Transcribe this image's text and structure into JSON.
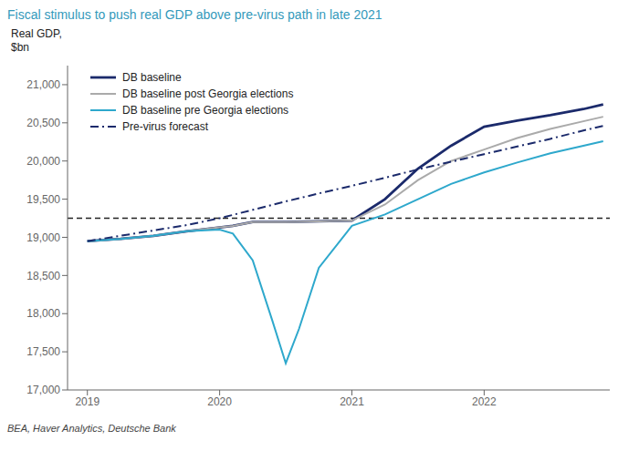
{
  "chart_data": {
    "type": "line",
    "title": "Fiscal stimulus to push real GDP above pre-virus path in late 2021",
    "ylabel": "Real GDP,\n$bn",
    "source": "BEA, Haver Analytics, Deutsche Bank",
    "title_color": "#3399bb",
    "xlim": [
      2018.85,
      2022.95
    ],
    "xticks": [
      2019,
      2020,
      2021,
      2022
    ],
    "ylim": [
      17000,
      21250
    ],
    "yticks": [
      {
        "value": 17000,
        "label": "17,000"
      },
      {
        "value": 17500,
        "label": "17,500"
      },
      {
        "value": 18000,
        "label": "18,000"
      },
      {
        "value": 18500,
        "label": "18,500"
      },
      {
        "value": 19000,
        "label": "19,000"
      },
      {
        "value": 19500,
        "label": "19,500"
      },
      {
        "value": 20000,
        "label": "20,000"
      },
      {
        "value": 20500,
        "label": "20,500"
      },
      {
        "value": 21000,
        "label": "21,000"
      }
    ],
    "grid": false,
    "legend": "upper left",
    "series": [
      {
        "name": "DB baseline",
        "color": "#1b2a6b",
        "line_style": "solid",
        "x": [
          2019.0,
          2019.25,
          2019.5,
          2019.75,
          2020.0,
          2020.1,
          2020.25,
          2020.5,
          2020.75,
          2021.0,
          2021.25,
          2021.5,
          2021.75,
          2022.0,
          2022.25,
          2022.5,
          2022.75,
          2022.9
        ],
        "values": [
          18950,
          18980,
          19020,
          19080,
          19130,
          19150,
          19200,
          19200,
          19210,
          19220,
          19500,
          19900,
          20200,
          20450,
          20530,
          20600,
          20680,
          20740
        ]
      },
      {
        "name": "DB baseline post Georgia elections",
        "color": "#aaaaaa",
        "line_style": "solid",
        "x": [
          2019.0,
          2019.25,
          2019.5,
          2019.75,
          2020.0,
          2020.1,
          2020.25,
          2020.5,
          2020.75,
          2021.0,
          2021.25,
          2021.5,
          2021.75,
          2022.0,
          2022.25,
          2022.5,
          2022.75,
          2022.9
        ],
        "values": [
          18950,
          18980,
          19020,
          19080,
          19130,
          19150,
          19200,
          19200,
          19210,
          19220,
          19430,
          19750,
          20000,
          20150,
          20300,
          20420,
          20520,
          20580
        ]
      },
      {
        "name": "DB baseline pre Georgia elections",
        "color": "#2ea8cc",
        "line_style": "solid",
        "x": [
          2019.0,
          2019.25,
          2019.5,
          2019.75,
          2020.0,
          2020.1,
          2020.25,
          2020.4,
          2020.5,
          2020.6,
          2020.75,
          2021.0,
          2021.25,
          2021.5,
          2021.75,
          2022.0,
          2022.25,
          2022.5,
          2022.75,
          2022.9
        ],
        "values": [
          18950,
          18980,
          19020,
          19080,
          19100,
          19050,
          18700,
          17900,
          17350,
          17800,
          18600,
          19150,
          19300,
          19500,
          19700,
          19850,
          19980,
          20100,
          20200,
          20260
        ]
      },
      {
        "name": "Pre-virus forecast",
        "color": "#1b2a6b",
        "line_style": "dashdot",
        "x": [
          2019.0,
          2019.25,
          2019.5,
          2019.75,
          2020.0,
          2020.25,
          2020.5,
          2020.75,
          2021.0,
          2021.25,
          2021.5,
          2021.75,
          2022.0,
          2022.25,
          2022.5,
          2022.75,
          2022.9
        ],
        "values": [
          18950,
          19020,
          19090,
          19160,
          19250,
          19360,
          19470,
          19575,
          19675,
          19780,
          19890,
          19990,
          20090,
          20190,
          20290,
          20400,
          20460
        ]
      }
    ],
    "hlines": [
      {
        "y": 19250,
        "color": "#222222",
        "line_style": "dashed"
      }
    ]
  }
}
